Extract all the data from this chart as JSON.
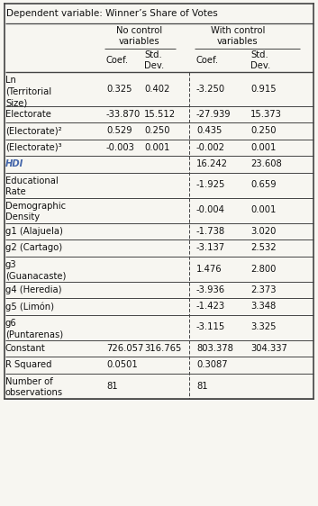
{
  "title": "Dependent variable: Winner’s Share of Votes",
  "bg_color": "#f7f6f1",
  "line_color": "#444444",
  "text_color": "#111111",
  "font_size": 7.2,
  "rows": [
    {
      "label": "Ln\n(Territorial\nSize)",
      "c1": "0.325",
      "s1": "0.402",
      "c2": "-3.250",
      "s2": "0.915",
      "lines": 3
    },
    {
      "label": "Electorate",
      "c1": "-33.870",
      "s1": "15.512",
      "c2": "-27.939",
      "s2": "15.373",
      "lines": 1
    },
    {
      "label": "(Electorate)²",
      "c1": "0.529",
      "s1": "0.250",
      "c2": "0.435",
      "s2": "0.250",
      "lines": 1
    },
    {
      "label": "(Electorate)³",
      "c1": "-0.003",
      "s1": "0.001",
      "c2": "-0.002",
      "s2": "0.001",
      "lines": 1
    },
    {
      "label": "HDI",
      "c1": "",
      "s1": "",
      "c2": "16.242",
      "s2": "23.608",
      "lines": 1,
      "hdi": true
    },
    {
      "label": "Educational\nRate",
      "c1": "",
      "s1": "",
      "c2": "-1.925",
      "s2": "0.659",
      "lines": 2
    },
    {
      "label": "Demographic\nDensity",
      "c1": "",
      "s1": "",
      "c2": "-0.004",
      "s2": "0.001",
      "lines": 2
    },
    {
      "label": "g1 (Alajuela)",
      "c1": "",
      "s1": "",
      "c2": "-1.738",
      "s2": "3.020",
      "lines": 1
    },
    {
      "label": "g2 (Cartago)",
      "c1": "",
      "s1": "",
      "c2": "-3.137",
      "s2": "2.532",
      "lines": 1
    },
    {
      "label": "g3\n(Guanacaste)",
      "c1": "",
      "s1": "",
      "c2": "1.476",
      "s2": "2.800",
      "lines": 2
    },
    {
      "label": "g4 (Heredia)",
      "c1": "",
      "s1": "",
      "c2": "-3.936",
      "s2": "2.373",
      "lines": 1
    },
    {
      "label": "g5 (Limón)",
      "c1": "",
      "s1": "",
      "c2": "-1.423",
      "s2": "3.348",
      "lines": 1
    },
    {
      "label": "g6\n(Puntarenas)",
      "c1": "",
      "s1": "",
      "c2": "-3.115",
      "s2": "3.325",
      "lines": 2
    },
    {
      "label": "Constant",
      "c1": "726.057",
      "s1": "316.765",
      "c2": "803.378",
      "s2": "304.337",
      "lines": 1
    },
    {
      "label": "R Squared",
      "c1": "0.0501",
      "s1": "",
      "c2": "0.3087",
      "s2": "",
      "lines": 1
    },
    {
      "label": "Number of\nobservations",
      "c1": "81",
      "s1": "",
      "c2": "81",
      "s2": "",
      "lines": 2
    }
  ]
}
